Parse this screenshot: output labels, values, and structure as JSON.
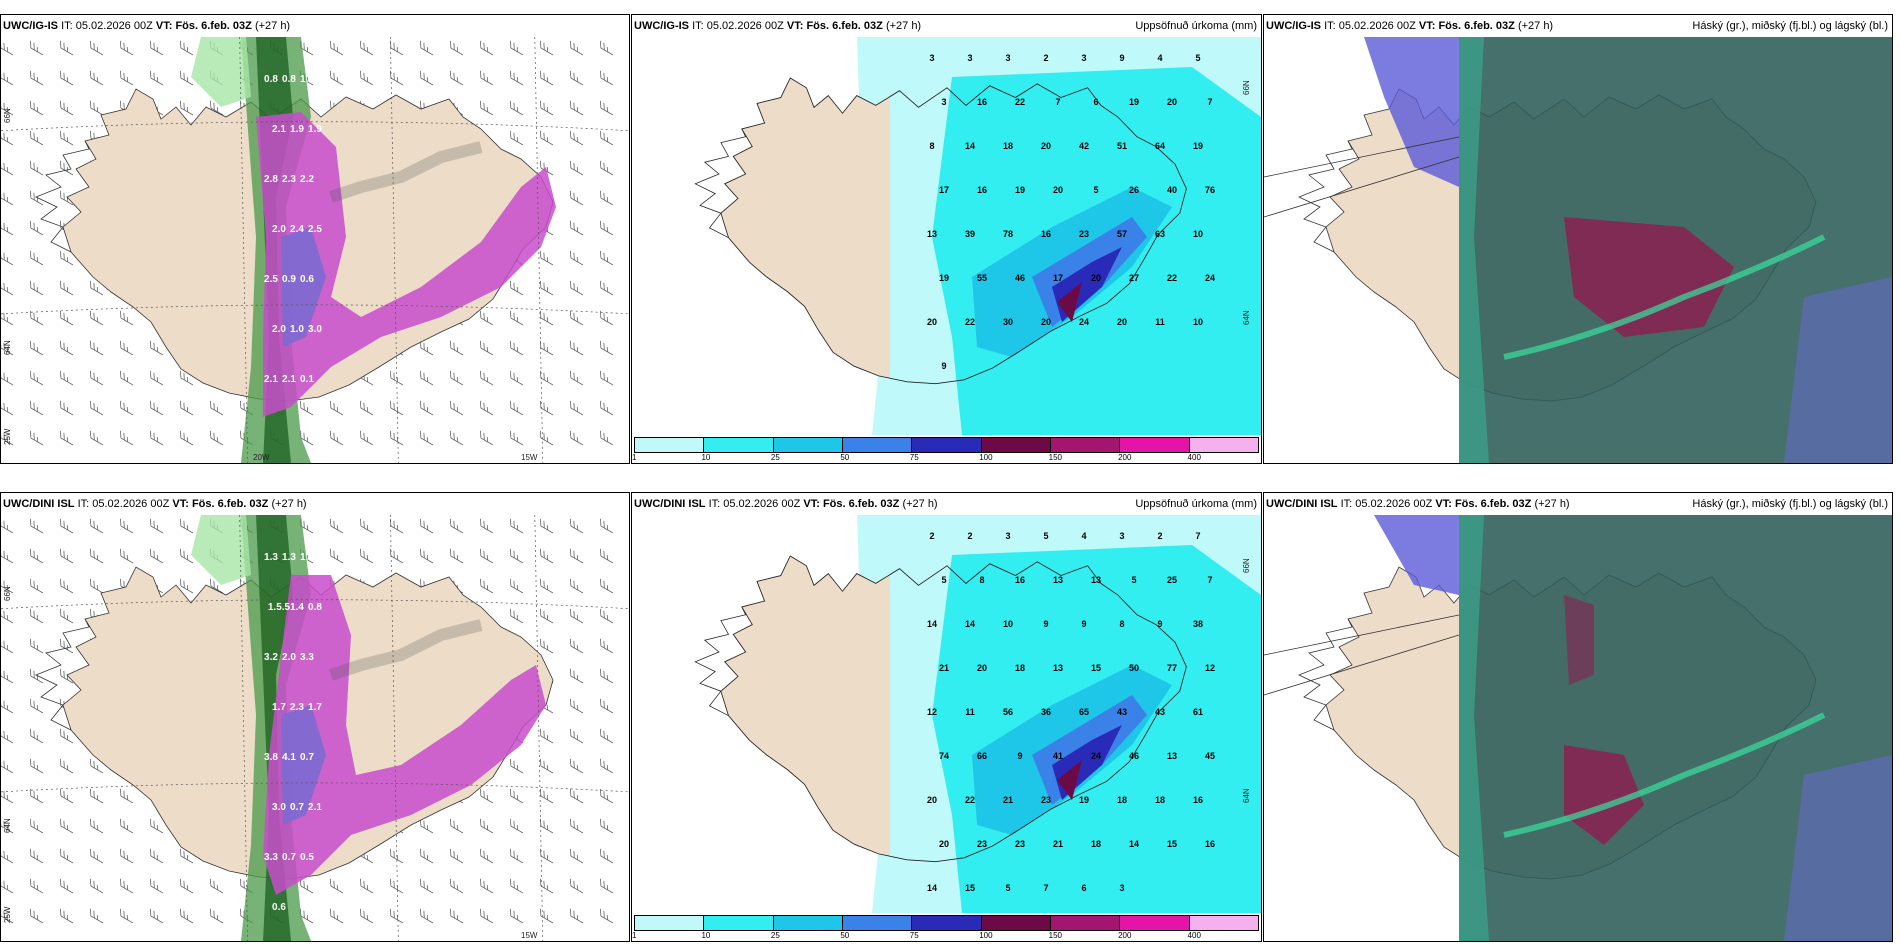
{
  "colors": {
    "land": "#ecdcc8",
    "precip_scale": [
      "#bff9f9",
      "#33eef0",
      "#1ec6e8",
      "#3b82e8",
      "#2a2ab8",
      "#6b0a44",
      "#a3156e",
      "#e614a6",
      "#f5b0ee"
    ]
  },
  "rows": [
    {
      "model": "UWC/IG-IS",
      "panels": [
        {
          "type": "precip-type",
          "model_label": "UWC/IG-IS",
          "it_label": "IT:",
          "it_value": "05.02.2026 00Z",
          "vt_label": "VT:",
          "vt_value": "Fös. 6.feb. 03Z",
          "lead": "(+27 h)",
          "right_title": "",
          "lat_labels": [
            "66N",
            "64N",
            "25W"
          ],
          "lon_labels": [
            "20W",
            "15W"
          ],
          "values": [
            "0.8",
            "0.8",
            "1.1",
            "2.1",
            "1.9",
            "1.9",
            "2.8",
            "2.3",
            "2.2",
            "2.0",
            "2.4",
            "2.5",
            "2.5",
            "0.9",
            "0.6",
            "2.0",
            "1.0",
            "3.0",
            "2.1",
            "2.1",
            "0.1"
          ]
        },
        {
          "type": "accum-precip",
          "model_label": "UWC/IG-IS",
          "it_label": "IT:",
          "it_value": "05.02.2026 00Z",
          "vt_label": "VT:",
          "vt_value": "Fös. 6.feb. 03Z",
          "lead": "(+27 h)",
          "right_title": "Uppsöfnuð úrkoma (mm)",
          "lat_labels": [
            "66N",
            "64N"
          ],
          "colorbar_ticks": [
            "1",
            "10",
            "25",
            "50",
            "75",
            "100",
            "150",
            "200",
            "400"
          ],
          "values": [
            "3",
            "3",
            "3",
            "2",
            "3",
            "9",
            "4",
            "5",
            "3",
            "16",
            "22",
            "7",
            "6",
            "19",
            "20",
            "7",
            "8",
            "14",
            "18",
            "20",
            "42",
            "51",
            "64",
            "19",
            "17",
            "16",
            "19",
            "20",
            "5",
            "26",
            "40",
            "76",
            "13",
            "39",
            "78",
            "16",
            "23",
            "57",
            "63",
            "10",
            "19",
            "55",
            "46",
            "17",
            "20",
            "27",
            "22",
            "24",
            "20",
            "22",
            "30",
            "20",
            "24",
            "20",
            "11",
            "10",
            "9"
          ]
        },
        {
          "type": "cloud-cover",
          "model_label": "UWC/IG-IS",
          "it_label": "IT:",
          "it_value": "05.02.2026 00Z",
          "vt_label": "VT:",
          "vt_value": "Fös. 6.feb. 03Z",
          "lead": "(+27 h)",
          "right_title": "Háský (gr.), miðský (fj.bl.) og lágský (bl.)"
        }
      ]
    },
    {
      "model": "UWC/DINI ISL",
      "panels": [
        {
          "type": "precip-type",
          "model_label": "UWC/DINI ISL",
          "it_label": "IT:",
          "it_value": "05.02.2026 00Z",
          "vt_label": "VT:",
          "vt_value": "Fös. 6.feb. 03Z",
          "lead": "(+27 h)",
          "right_title": "",
          "lat_labels": [
            "66N",
            "64N",
            "25W"
          ],
          "lon_labels": [
            "15W"
          ],
          "values": [
            "1.3",
            "1.3",
            "1.6",
            "1.5.5",
            "1.4",
            "0.8",
            "3.2",
            "2.0",
            "3.3",
            "1.7",
            "2.3",
            "1.7",
            "3.8",
            "4.1",
            "0.7",
            "3.0",
            "0.7",
            "2.1",
            "3.3",
            "0.7",
            "0.5",
            "0.6"
          ]
        },
        {
          "type": "accum-precip",
          "model_label": "UWC/DINI ISL",
          "it_label": "IT:",
          "it_value": "05.02.2026 00Z",
          "vt_label": "VT:",
          "vt_value": "Fös. 6.feb. 03Z",
          "lead": "(+27 h)",
          "right_title": "Uppsöfnuð úrkoma (mm)",
          "lat_labels": [
            "66N",
            "64N"
          ],
          "colorbar_ticks": [
            "1",
            "10",
            "25",
            "50",
            "75",
            "100",
            "150",
            "200",
            "400"
          ],
          "values": [
            "2",
            "2",
            "3",
            "5",
            "4",
            "3",
            "2",
            "7",
            "5",
            "8",
            "16",
            "13",
            "13",
            "5",
            "25",
            "7",
            "14",
            "14",
            "10",
            "9",
            "9",
            "8",
            "9",
            "38",
            "21",
            "20",
            "18",
            "13",
            "15",
            "50",
            "77",
            "12",
            "12",
            "11",
            "56",
            "36",
            "65",
            "43",
            "43",
            "61",
            "74",
            "66",
            "9",
            "41",
            "24",
            "46",
            "13",
            "45",
            "20",
            "22",
            "21",
            "23",
            "19",
            "18",
            "18",
            "16",
            "20",
            "23",
            "23",
            "21",
            "18",
            "14",
            "15",
            "16",
            "14",
            "15",
            "5",
            "7",
            "6",
            "3"
          ]
        },
        {
          "type": "cloud-cover",
          "model_label": "UWC/DINI ISL",
          "it_label": "IT:",
          "it_value": "05.02.2026 00Z",
          "vt_label": "VT:",
          "vt_value": "Fös. 6.feb. 03Z",
          "lead": "(+27 h)",
          "right_title": "Háský (gr.), miðský (fj.bl.) og lágský (bl.)"
        }
      ]
    }
  ]
}
